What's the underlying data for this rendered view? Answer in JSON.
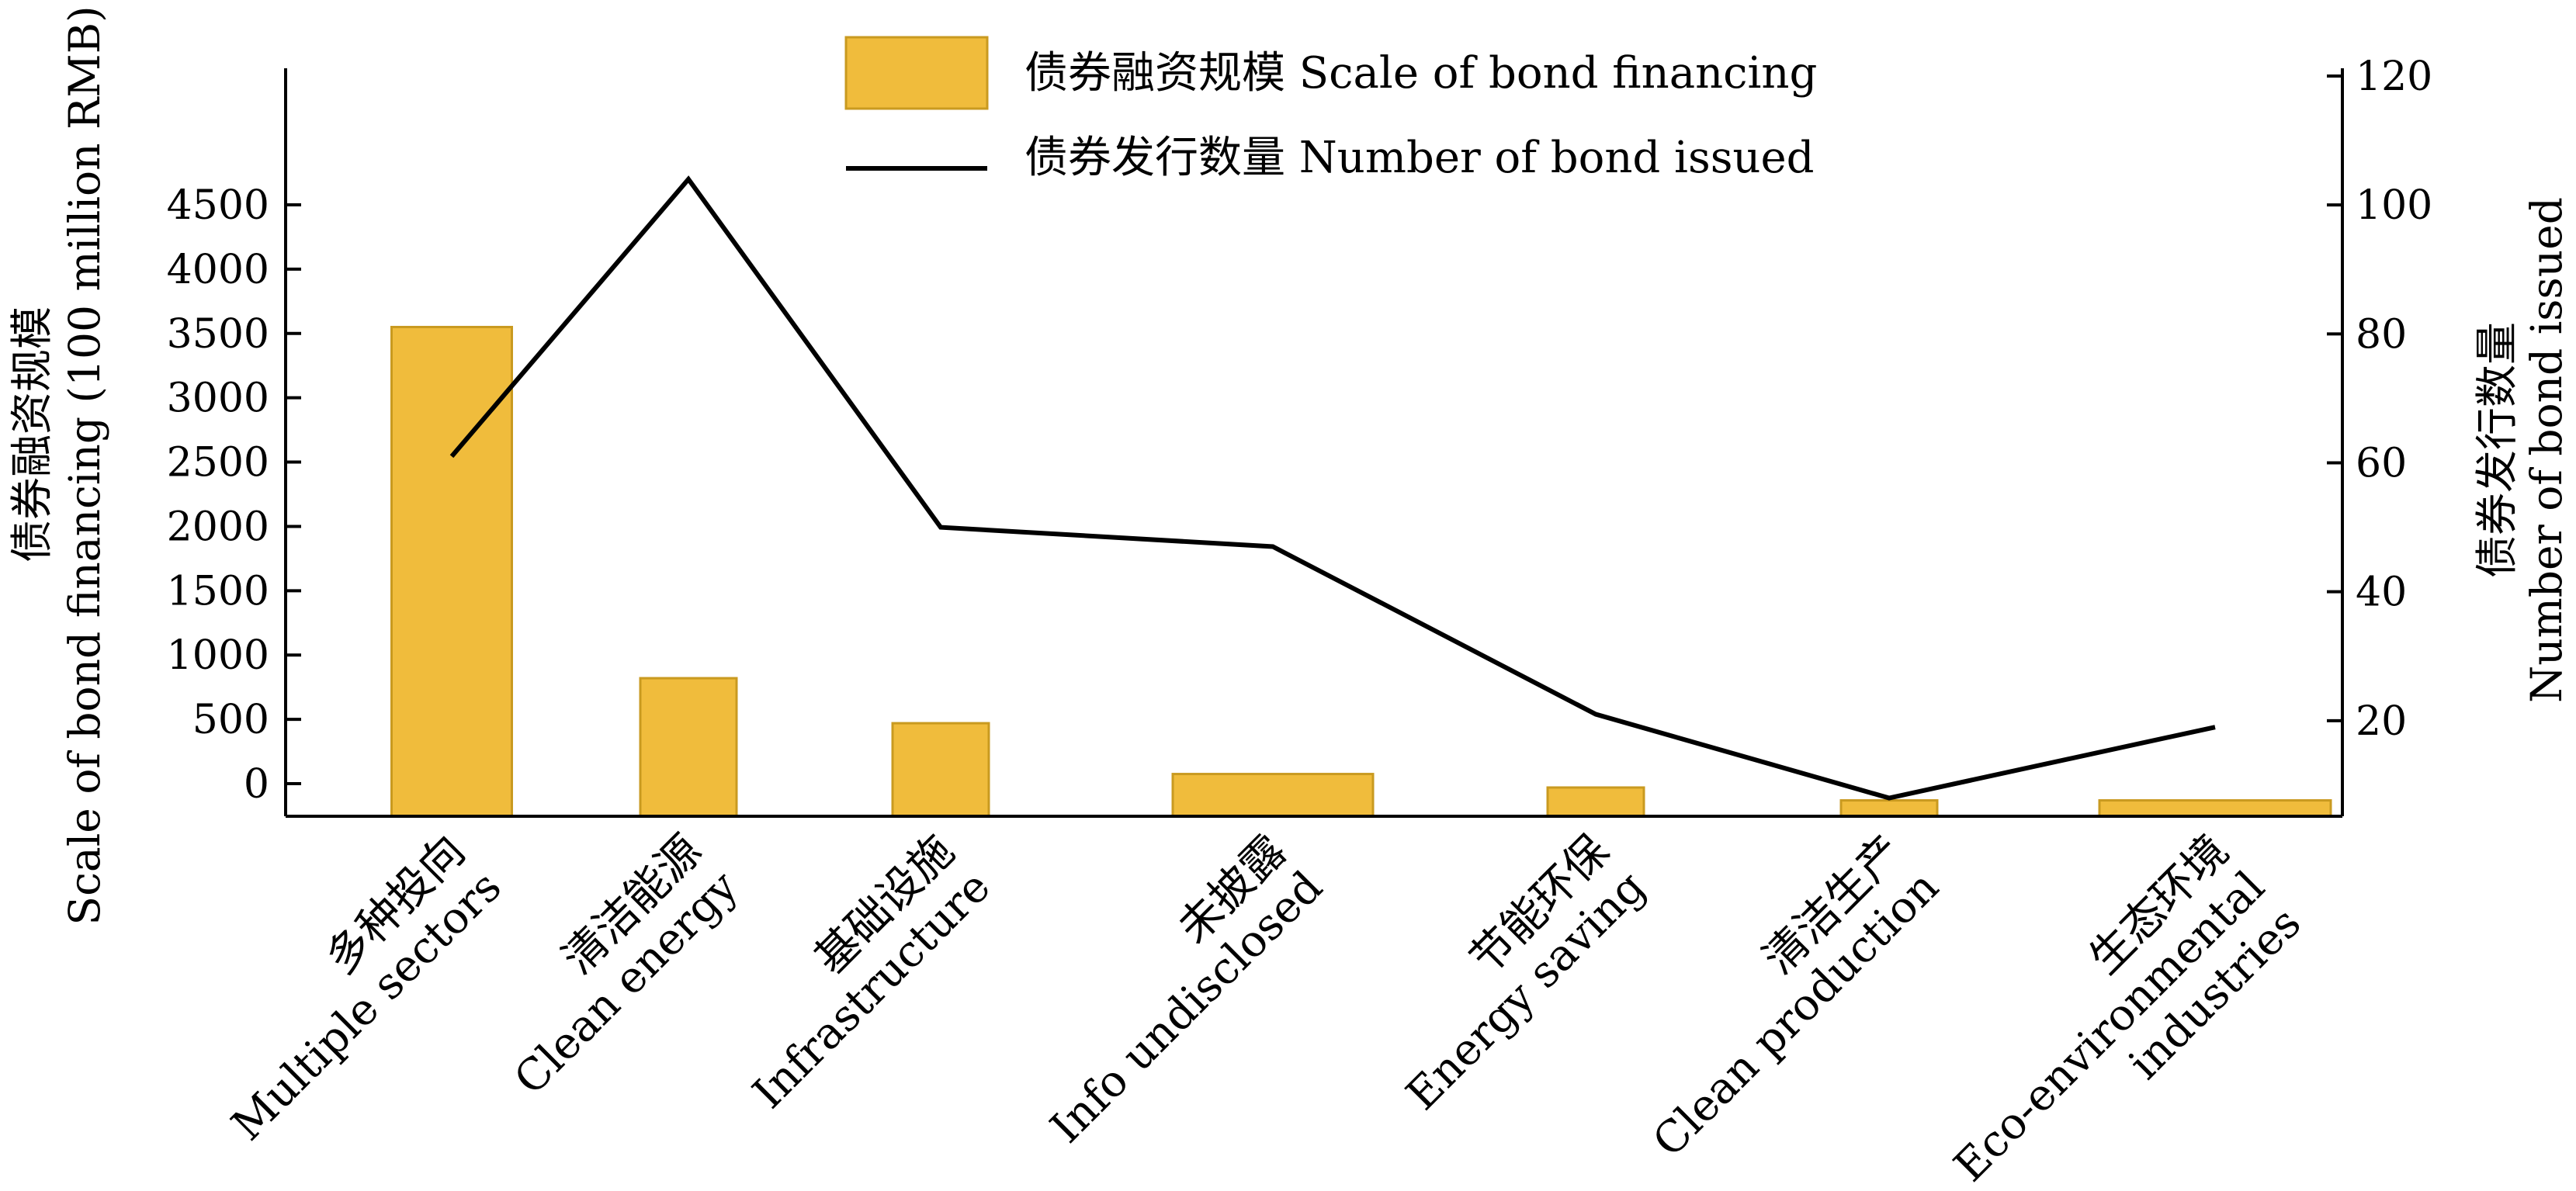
{
  "chart_data": {
    "type": "bar+line",
    "categories": [
      {
        "cn": "多种投向",
        "en": [
          "Multiple sectors"
        ]
      },
      {
        "cn": "清洁能源",
        "en": [
          "Clean energy"
        ]
      },
      {
        "cn": "基础设施",
        "en": [
          "Infrastructure"
        ]
      },
      {
        "cn": "未披露",
        "en": [
          "Info undisclosed"
        ]
      },
      {
        "cn": "节能环保",
        "en": [
          "Energy saving"
        ]
      },
      {
        "cn": "清洁生产",
        "en": [
          "Clean production"
        ]
      },
      {
        "cn": "生态环境",
        "en": [
          "Eco-environmental",
          "industries"
        ]
      }
    ],
    "series": [
      {
        "name": "债券融资规模 Scale of bond financing",
        "type": "bar",
        "axis": "left",
        "color": "#F0BC3C",
        "values": [
          3550,
          820,
          470,
          75,
          -30,
          -130,
          -130
        ]
      },
      {
        "name": "债券发行数量 Number of bond issued",
        "type": "line",
        "axis": "right",
        "color": "#000000",
        "values": [
          61,
          104,
          50,
          47,
          21,
          8,
          19
        ]
      }
    ],
    "left_axis": {
      "label_line1": "债券融资规模",
      "label_line2": "Scale of bond financing (100 million RMB)",
      "ticks": [
        0,
        500,
        1000,
        1500,
        2000,
        2500,
        3000,
        3500,
        4000,
        4500
      ]
    },
    "right_axis": {
      "label_line1": "债券发行数量",
      "label_line2": "Number of bond issued",
      "ticks": [
        20,
        40,
        60,
        80,
        100,
        120
      ]
    },
    "legend_position": "top"
  }
}
